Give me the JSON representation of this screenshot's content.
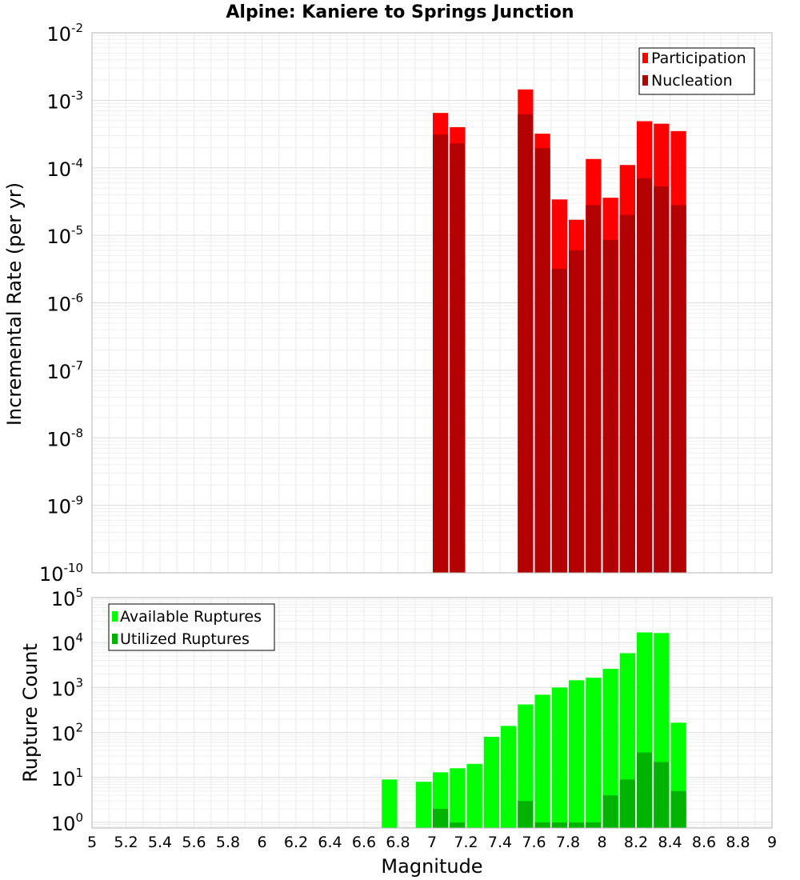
{
  "page_title": "Alpine: Kaniere to Springs Junction",
  "chart_data": [
    {
      "type": "bar",
      "title": "Alpine: Kaniere to Springs Junction",
      "xlabel": "",
      "ylabel": "Incremental Rate (per yr)",
      "yscale": "log",
      "ylim": [
        1e-10,
        0.01
      ],
      "xlim": [
        5,
        9
      ],
      "grid": true,
      "legend_position": "top-right",
      "x": [
        7.05,
        7.15,
        7.55,
        7.65,
        7.75,
        7.85,
        7.95,
        8.05,
        8.15,
        8.25,
        8.35,
        8.45
      ],
      "bar_width": 0.1,
      "series": [
        {
          "name": "Participation",
          "color": "#ff0000",
          "values": [
            0.00065,
            0.0004,
            0.00145,
            0.00032,
            3.4e-05,
            1.7e-05,
            0.000135,
            3.6e-05,
            0.00011,
            0.00049,
            0.00045,
            0.00035
          ]
        },
        {
          "name": "Nucleation",
          "color": "#b30000",
          "values": [
            0.00031,
            0.00023,
            0.00062,
            0.000195,
            3.2e-06,
            6e-06,
            2.8e-05,
            8.5e-06,
            2e-05,
            7e-05,
            5.3e-05,
            2.8e-05
          ]
        }
      ],
      "yticks": [
        {
          "base": "10",
          "exp": "-10"
        },
        {
          "base": "10",
          "exp": "-9"
        },
        {
          "base": "10",
          "exp": "-8"
        },
        {
          "base": "10",
          "exp": "-7"
        },
        {
          "base": "10",
          "exp": "-6"
        },
        {
          "base": "10",
          "exp": "-5"
        },
        {
          "base": "10",
          "exp": "-4"
        },
        {
          "base": "10",
          "exp": "-3"
        },
        {
          "base": "10",
          "exp": "-2"
        }
      ]
    },
    {
      "type": "bar",
      "title": "",
      "xlabel": "Magnitude",
      "ylabel": "Rupture Count",
      "yscale": "log",
      "ylim": [
        0.75,
        100000
      ],
      "xlim": [
        5,
        9
      ],
      "grid": true,
      "legend_position": "top-left",
      "x": [
        6.75,
        6.95,
        7.05,
        7.15,
        7.25,
        7.35,
        7.45,
        7.55,
        7.65,
        7.75,
        7.85,
        7.95,
        8.05,
        8.15,
        8.25,
        8.35,
        8.45
      ],
      "bar_width": 0.1,
      "series": [
        {
          "name": "Available Ruptures",
          "color": "#00ff00",
          "values": [
            9,
            8,
            13,
            16,
            20,
            80,
            140,
            420,
            690,
            1000,
            1450,
            1650,
            2600,
            5800,
            16800,
            16300,
            165
          ]
        },
        {
          "name": "Utilized Ruptures",
          "color": "#00b300",
          "values": [
            0,
            0,
            2,
            1,
            0,
            0,
            0,
            3,
            1,
            1,
            1,
            1,
            4,
            9,
            36,
            22,
            5
          ]
        }
      ],
      "yticks": [
        {
          "base": "10",
          "exp": "0"
        },
        {
          "base": "10",
          "exp": "1"
        },
        {
          "base": "10",
          "exp": "2"
        },
        {
          "base": "10",
          "exp": "3"
        },
        {
          "base": "10",
          "exp": "4"
        },
        {
          "base": "10",
          "exp": "5"
        }
      ],
      "xticks": [
        "5",
        "5.2",
        "5.4",
        "5.6",
        "5.8",
        "6",
        "6.2",
        "6.4",
        "6.6",
        "6.8",
        "7",
        "7.2",
        "7.4",
        "7.6",
        "7.8",
        "8",
        "8.2",
        "8.4",
        "8.6",
        "8.8",
        "9"
      ]
    }
  ]
}
